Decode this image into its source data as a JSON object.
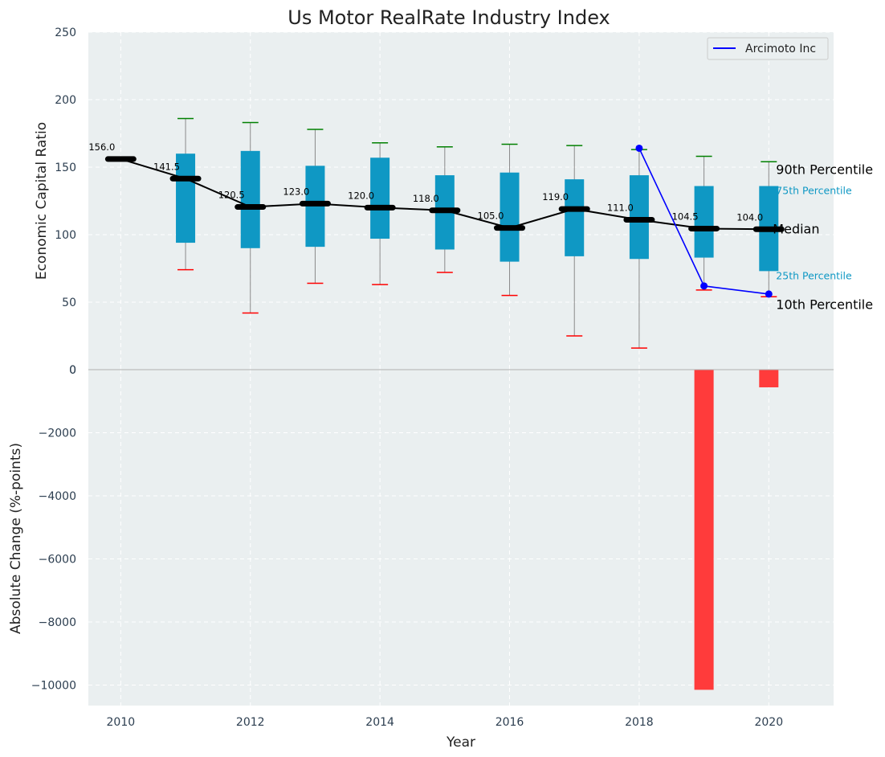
{
  "chart_data": {
    "title": "Us Motor RealRate Industry Index",
    "xlabel": "Year",
    "xlim": [
      2009.5,
      2021
    ],
    "x_ticks": [
      2010,
      2012,
      2014,
      2016,
      2018,
      2020
    ],
    "grid": true,
    "panels": [
      {
        "type": "box",
        "ylabel": "Economic Capital Ratio",
        "ylim": [
          0,
          250
        ],
        "y_ticks": [
          0,
          50,
          100,
          150,
          200,
          250
        ],
        "industry_median": {
          "years": [
            2010,
            2011,
            2012,
            2013,
            2014,
            2015,
            2016,
            2017,
            2018,
            2019,
            2020
          ],
          "values": [
            156.0,
            141.5,
            120.5,
            123.0,
            120.0,
            118.0,
            105.0,
            119.0,
            111.0,
            104.5,
            104.0
          ],
          "labels": [
            "156.0",
            "141.5",
            "120.5",
            "123.0",
            "120.0",
            "118.0",
            "105.0",
            "119.0",
            "111.0",
            "104.5",
            "104.0"
          ],
          "color": "#000000"
        },
        "boxes": [
          {
            "year": 2011,
            "p10": 74,
            "p25": 94,
            "p75": 160,
            "p90": 186
          },
          {
            "year": 2012,
            "p10": 42,
            "p25": 90,
            "p75": 162,
            "p90": 183
          },
          {
            "year": 2013,
            "p10": 64,
            "p25": 91,
            "p75": 151,
            "p90": 178
          },
          {
            "year": 2014,
            "p10": 63,
            "p25": 97,
            "p75": 157,
            "p90": 168
          },
          {
            "year": 2015,
            "p10": 72,
            "p25": 89,
            "p75": 144,
            "p90": 165
          },
          {
            "year": 2016,
            "p10": 55,
            "p25": 80,
            "p75": 146,
            "p90": 167
          },
          {
            "year": 2017,
            "p10": 25,
            "p25": 84,
            "p75": 141,
            "p90": 166
          },
          {
            "year": 2018,
            "p10": 16,
            "p25": 82,
            "p75": 144,
            "p90": 163
          },
          {
            "year": 2019,
            "p10": 59,
            "p25": 83,
            "p75": 136,
            "p90": 158
          },
          {
            "year": 2020,
            "p10": 54,
            "p25": 73,
            "p75": 136,
            "p90": 154
          }
        ],
        "box_color": "#0f98c4",
        "whisker_top_color": "#008000",
        "whisker_bottom_color": "#ff0000",
        "series": [
          {
            "name": "Arcimoto Inc",
            "x": [
              2018,
              2019,
              2020
            ],
            "values": [
              164,
              62,
              56
            ],
            "color": "#0000ff"
          }
        ],
        "legend": {
          "position": "top-right",
          "entries": [
            "Arcimoto Inc"
          ]
        },
        "annotations": {
          "p90": "90th Percentile",
          "p75": "75th Percentile",
          "median": "Median",
          "p25": "25th Percentile",
          "p10": "10th Percentile"
        }
      },
      {
        "type": "bar",
        "ylabel": "Absolute Change (%-points)",
        "ylim": [
          -10650,
          0
        ],
        "y_ticks": [
          0,
          -2000,
          -4000,
          -6000,
          -8000,
          -10000
        ],
        "x": [
          2019,
          2020
        ],
        "values": [
          -10150,
          -560
        ],
        "color": "#ff3b3b"
      }
    ]
  }
}
